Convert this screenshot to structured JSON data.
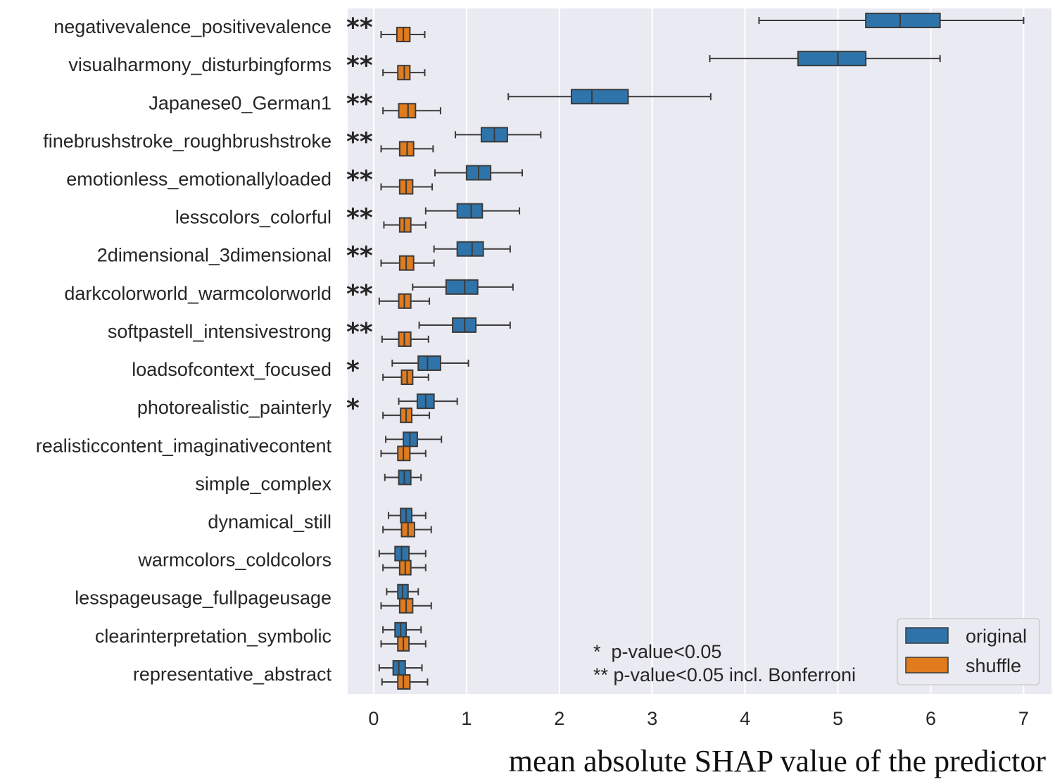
{
  "chart_data": {
    "type": "box",
    "orientation": "horizontal",
    "xlabel": "mean absolute SHAP value of the predictor",
    "xlim": [
      -0.28,
      7.3
    ],
    "xticks": [
      0,
      1,
      2,
      3,
      4,
      5,
      6,
      7
    ],
    "grid": true,
    "legend": {
      "position": "bottom-right",
      "entries": [
        {
          "name": "original",
          "color": "#2e74ab"
        },
        {
          "name": "shuffle",
          "color": "#e07b1e"
        }
      ]
    },
    "annotation_lines": [
      "*  p-value<0.05",
      "** p-value<0.05 incl. Bonferroni"
    ],
    "categories": [
      {
        "label": "negativevalence_positivevalence",
        "sig": "**",
        "original": {
          "wlo": 4.15,
          "q1": 5.3,
          "med": 5.67,
          "q3": 6.1,
          "whi": 7.0
        },
        "shuffle": {
          "wlo": 0.08,
          "q1": 0.25,
          "med": 0.32,
          "q3": 0.39,
          "whi": 0.55
        }
      },
      {
        "label": "visualharmony_disturbingforms",
        "sig": "**",
        "original": {
          "wlo": 3.62,
          "q1": 4.57,
          "med": 5.0,
          "q3": 5.3,
          "whi": 6.1
        },
        "shuffle": {
          "wlo": 0.1,
          "q1": 0.26,
          "med": 0.33,
          "q3": 0.39,
          "whi": 0.55
        }
      },
      {
        "label": "Japanese0_German1",
        "sig": "**",
        "original": {
          "wlo": 1.45,
          "q1": 2.13,
          "med": 2.35,
          "q3": 2.74,
          "whi": 3.63
        },
        "shuffle": {
          "wlo": 0.1,
          "q1": 0.27,
          "med": 0.37,
          "q3": 0.45,
          "whi": 0.72
        }
      },
      {
        "label": "finebrushstroke_roughbrushstroke",
        "sig": "**",
        "original": {
          "wlo": 0.88,
          "q1": 1.16,
          "med": 1.3,
          "q3": 1.44,
          "whi": 1.8
        },
        "shuffle": {
          "wlo": 0.08,
          "q1": 0.28,
          "med": 0.36,
          "q3": 0.43,
          "whi": 0.64
        }
      },
      {
        "label": "emotionless_emotionallyloaded",
        "sig": "**",
        "original": {
          "wlo": 0.66,
          "q1": 1.0,
          "med": 1.13,
          "q3": 1.26,
          "whi": 1.6
        },
        "shuffle": {
          "wlo": 0.08,
          "q1": 0.28,
          "med": 0.35,
          "q3": 0.42,
          "whi": 0.63
        }
      },
      {
        "label": "lesscolors_colorful",
        "sig": "**",
        "original": {
          "wlo": 0.56,
          "q1": 0.9,
          "med": 1.05,
          "q3": 1.17,
          "whi": 1.57
        },
        "shuffle": {
          "wlo": 0.11,
          "q1": 0.28,
          "med": 0.33,
          "q3": 0.4,
          "whi": 0.56
        }
      },
      {
        "label": "2dimensional_3dimensional",
        "sig": "**",
        "original": {
          "wlo": 0.65,
          "q1": 0.9,
          "med": 1.06,
          "q3": 1.18,
          "whi": 1.47
        },
        "shuffle": {
          "wlo": 0.08,
          "q1": 0.28,
          "med": 0.35,
          "q3": 0.43,
          "whi": 0.65
        }
      },
      {
        "label": "darkcolorworld_warmcolorworld",
        "sig": "**",
        "original": {
          "wlo": 0.42,
          "q1": 0.78,
          "med": 0.98,
          "q3": 1.12,
          "whi": 1.5
        },
        "shuffle": {
          "wlo": 0.06,
          "q1": 0.27,
          "med": 0.33,
          "q3": 0.4,
          "whi": 0.6
        }
      },
      {
        "label": "softpastell_intensivestrong",
        "sig": "**",
        "original": {
          "wlo": 0.49,
          "q1": 0.85,
          "med": 0.98,
          "q3": 1.1,
          "whi": 1.47
        },
        "shuffle": {
          "wlo": 0.09,
          "q1": 0.27,
          "med": 0.33,
          "q3": 0.4,
          "whi": 0.59
        }
      },
      {
        "label": "loadsofcontext_focused",
        "sig": "*",
        "original": {
          "wlo": 0.2,
          "q1": 0.48,
          "med": 0.58,
          "q3": 0.72,
          "whi": 1.02
        },
        "shuffle": {
          "wlo": 0.1,
          "q1": 0.3,
          "med": 0.36,
          "q3": 0.42,
          "whi": 0.59
        }
      },
      {
        "label": "photorealistic_painterly",
        "sig": "*",
        "original": {
          "wlo": 0.27,
          "q1": 0.47,
          "med": 0.56,
          "q3": 0.65,
          "whi": 0.9
        },
        "shuffle": {
          "wlo": 0.1,
          "q1": 0.29,
          "med": 0.35,
          "q3": 0.41,
          "whi": 0.6
        }
      },
      {
        "label": "realisticcontent_imaginativecontent",
        "sig": "",
        "original": {
          "wlo": 0.13,
          "q1": 0.32,
          "med": 0.39,
          "q3": 0.47,
          "whi": 0.73
        },
        "shuffle": {
          "wlo": 0.08,
          "q1": 0.26,
          "med": 0.32,
          "q3": 0.39,
          "whi": 0.56
        }
      },
      {
        "label": "simple_complex",
        "sig": "",
        "original": {
          "wlo": 0.12,
          "q1": 0.27,
          "med": 0.33,
          "q3": 0.4,
          "whi": 0.51
        }
      },
      {
        "label": "dynamical_still",
        "sig": "",
        "original": {
          "wlo": 0.16,
          "q1": 0.29,
          "med": 0.35,
          "q3": 0.41,
          "whi": 0.56
        },
        "shuffle": {
          "wlo": 0.1,
          "q1": 0.3,
          "med": 0.37,
          "q3": 0.44,
          "whi": 0.62
        }
      },
      {
        "label": "warmcolors_coldcolors",
        "sig": "",
        "original": {
          "wlo": 0.06,
          "q1": 0.23,
          "med": 0.3,
          "q3": 0.38,
          "whi": 0.56
        },
        "shuffle": {
          "wlo": 0.1,
          "q1": 0.28,
          "med": 0.34,
          "q3": 0.4,
          "whi": 0.56
        }
      },
      {
        "label": "lesspageusage_fullpageusage",
        "sig": "",
        "original": {
          "wlo": 0.14,
          "q1": 0.26,
          "med": 0.31,
          "q3": 0.37,
          "whi": 0.48
        },
        "shuffle": {
          "wlo": 0.08,
          "q1": 0.28,
          "med": 0.35,
          "q3": 0.42,
          "whi": 0.62
        }
      },
      {
        "label": "clearinterpretation_symbolic",
        "sig": "",
        "original": {
          "wlo": 0.1,
          "q1": 0.23,
          "med": 0.29,
          "q3": 0.35,
          "whi": 0.51
        },
        "shuffle": {
          "wlo": 0.08,
          "q1": 0.26,
          "med": 0.32,
          "q3": 0.38,
          "whi": 0.56
        }
      },
      {
        "label": "representative_abstract",
        "sig": "",
        "original": {
          "wlo": 0.06,
          "q1": 0.21,
          "med": 0.27,
          "q3": 0.34,
          "whi": 0.52
        },
        "shuffle": {
          "wlo": 0.09,
          "q1": 0.26,
          "med": 0.32,
          "q3": 0.39,
          "whi": 0.58
        }
      }
    ]
  }
}
